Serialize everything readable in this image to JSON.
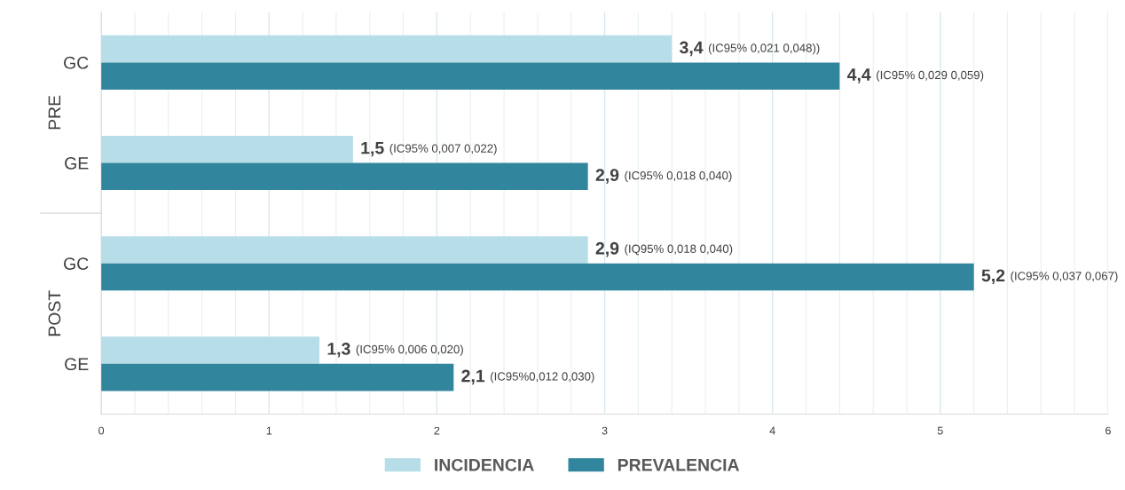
{
  "chart_data": {
    "type": "bar",
    "orientation": "horizontal",
    "categories": [
      "GC",
      "GE",
      "GC",
      "GE"
    ],
    "series": [
      {
        "name": "INCIDENCIA",
        "color": "#b6dde8",
        "values": [
          3.4,
          1.5,
          2.9,
          1.3
        ],
        "value_labels": [
          "3,4 (IC95% 0,021 0,048))",
          "1,5 (IC95% 0,007 0,022)",
          "2,9 (IQ95% 0,018 0,040)",
          "1,3 (IC95% 0,006 0,020)"
        ]
      },
      {
        "name": "PREVALENCIA",
        "color": "#31859c",
        "values": [
          4.4,
          2.9,
          5.2,
          2.1
        ],
        "value_labels": [
          "4,4 (IC95% 0,029 0,059)",
          "2,9 (IC95% 0,018 0,040)",
          "5,2 (IC95% 0,037 0,067)",
          "2,1 (IC95%0,012 0,030)"
        ]
      }
    ],
    "annotations": [
      "PRE",
      "POST"
    ],
    "xlim": [
      0,
      6
    ],
    "xticks": [
      0,
      1,
      2,
      3,
      4,
      5,
      6
    ],
    "grid": "x",
    "legend": "bottom"
  }
}
